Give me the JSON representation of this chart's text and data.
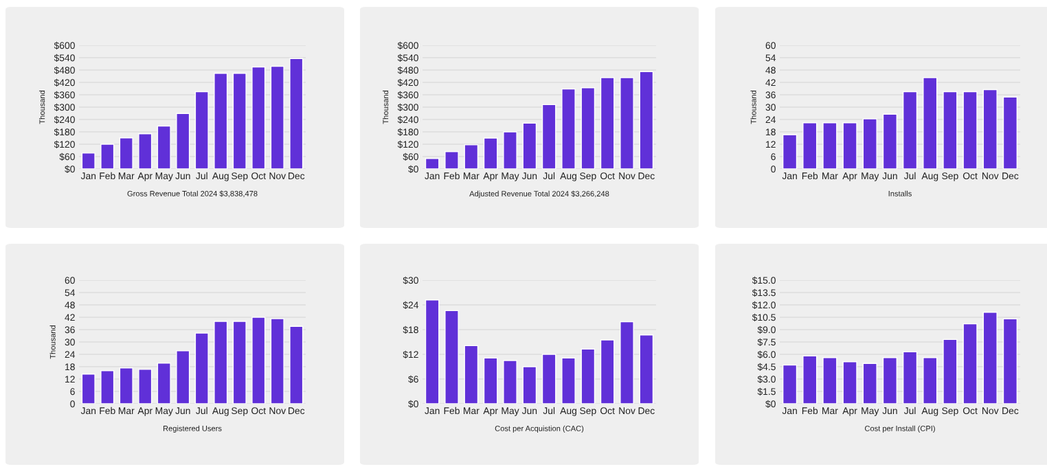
{
  "chart_data": [
    {
      "type": "bar",
      "xlabel": "Gross Revenue Total 2024 $3,838,478",
      "ylabel": "Thousand",
      "categories": [
        "Jan",
        "Feb",
        "Mar",
        "Apr",
        "May",
        "Jun",
        "Jul",
        "Aug",
        "Sep",
        "Oct",
        "Nov",
        "Dec"
      ],
      "series": [
        {
          "color": "#6030d8",
          "values": [
            77,
            120,
            151,
            171,
            208,
            269,
            375,
            464,
            464,
            495,
            498,
            536
          ]
        }
      ],
      "ylim": [
        0,
        600
      ],
      "yticks": [
        {
          "value": 0,
          "label": "$0"
        },
        {
          "value": 60,
          "label": "$60"
        },
        {
          "value": 120,
          "label": "$120"
        },
        {
          "value": 180,
          "label": "$180"
        },
        {
          "value": 240,
          "label": "$240"
        },
        {
          "value": 300,
          "label": "$300"
        },
        {
          "value": 360,
          "label": "$360"
        },
        {
          "value": 420,
          "label": "$420"
        },
        {
          "value": 480,
          "label": "$480"
        },
        {
          "value": 540,
          "label": "$540"
        },
        {
          "value": 600,
          "label": "$600"
        }
      ],
      "grid": "y"
    },
    {
      "type": "bar",
      "xlabel": "Adjusted Revenue Total 2024 $3,266,248",
      "ylabel": "Thousand",
      "categories": [
        "Jan",
        "Feb",
        "Mar",
        "Apr",
        "May",
        "Jun",
        "Jul",
        "Aug",
        "Sep",
        "Oct",
        "Nov",
        "Dec"
      ],
      "series": [
        {
          "color": "#6030d8",
          "values": [
            51,
            84,
            117,
            150,
            180,
            222,
            312,
            388,
            394,
            443,
            443,
            472
          ]
        }
      ],
      "ylim": [
        0,
        600
      ],
      "yticks": [
        {
          "value": 0,
          "label": "$0"
        },
        {
          "value": 60,
          "label": "$60"
        },
        {
          "value": 120,
          "label": "$120"
        },
        {
          "value": 180,
          "label": "$180"
        },
        {
          "value": 240,
          "label": "$240"
        },
        {
          "value": 300,
          "label": "$300"
        },
        {
          "value": 360,
          "label": "$360"
        },
        {
          "value": 420,
          "label": "$420"
        },
        {
          "value": 480,
          "label": "$480"
        },
        {
          "value": 540,
          "label": "$540"
        },
        {
          "value": 600,
          "label": "$600"
        }
      ],
      "grid": "y"
    },
    {
      "type": "bar",
      "xlabel": "Installs",
      "ylabel": "Thousand",
      "categories": [
        "Jan",
        "Feb",
        "Mar",
        "Apr",
        "May",
        "Jun",
        "Jul",
        "Aug",
        "Sep",
        "Oct",
        "Nov",
        "Dec"
      ],
      "series": [
        {
          "color": "#6030d8",
          "values": [
            16.6,
            22.4,
            22.4,
            22.4,
            24.3,
            26.6,
            37.5,
            44.3,
            37.5,
            37.5,
            38.5,
            34.9
          ]
        }
      ],
      "ylim": [
        0,
        60
      ],
      "yticks": [
        0,
        6,
        12,
        18,
        24,
        30,
        36,
        42,
        48,
        54,
        60
      ],
      "grid": "y"
    },
    {
      "type": "bar",
      "xlabel": "Registered Users",
      "ylabel": "Thousand",
      "categories": [
        "Jan",
        "Feb",
        "Mar",
        "Apr",
        "May",
        "Jun",
        "Jul",
        "Aug",
        "Sep",
        "Oct",
        "Nov",
        "Dec"
      ],
      "series": [
        {
          "color": "#6030d8",
          "values": [
            14.4,
            16.1,
            17.4,
            16.7,
            19.7,
            25.7,
            34.3,
            40.0,
            40.0,
            42.0,
            41.3,
            37.6
          ]
        }
      ],
      "ylim": [
        0,
        60
      ],
      "yticks": [
        0,
        6,
        12,
        18,
        24,
        30,
        36,
        42,
        48,
        54,
        60
      ],
      "grid": "y"
    },
    {
      "type": "bar",
      "xlabel": "Cost per Acquistion (CAC)",
      "categories": [
        "Jan",
        "Feb",
        "Mar",
        "Apr",
        "May",
        "Jun",
        "Jul",
        "Aug",
        "Sep",
        "Oct",
        "Nov",
        "Dec"
      ],
      "series": [
        {
          "color": "#6030d8",
          "values": [
            25.2,
            22.6,
            14.1,
            11.1,
            10.5,
            9.0,
            12.0,
            11.1,
            13.3,
            15.5,
            19.9,
            16.7
          ]
        }
      ],
      "ylim": [
        0,
        30
      ],
      "yticks": [
        {
          "value": 0,
          "label": "$0"
        },
        {
          "value": 6,
          "label": "$6"
        },
        {
          "value": 12,
          "label": "$12"
        },
        {
          "value": 18,
          "label": "$18"
        },
        {
          "value": 24,
          "label": "$24"
        },
        {
          "value": 30,
          "label": "$30"
        }
      ],
      "grid": "y"
    },
    {
      "type": "bar",
      "xlabel": "Cost per Install (CPI)",
      "categories": [
        "Jan",
        "Feb",
        "Mar",
        "Apr",
        "May",
        "Jun",
        "Jul",
        "Aug",
        "Sep",
        "Oct",
        "Nov",
        "Dec"
      ],
      "series": [
        {
          "color": "#6030d8",
          "values": [
            4.7,
            5.8,
            5.6,
            5.1,
            4.9,
            5.6,
            6.3,
            5.6,
            7.8,
            9.7,
            11.1,
            10.3
          ]
        }
      ],
      "ylim": [
        0,
        15
      ],
      "yticks": [
        {
          "value": 0,
          "label": "$0"
        },
        {
          "value": 1.5,
          "label": "$1.5"
        },
        {
          "value": 3,
          "label": "$3.0"
        },
        {
          "value": 4.5,
          "label": "$4.5"
        },
        {
          "value": 6,
          "label": "$6.0"
        },
        {
          "value": 7.5,
          "label": "$7.5"
        },
        {
          "value": 9,
          "label": "$9.0"
        },
        {
          "value": 10.5,
          "label": "$10.5"
        },
        {
          "value": 12,
          "label": "$12.0"
        },
        {
          "value": 13.5,
          "label": "$13.5"
        },
        {
          "value": 15,
          "label": "$15.0"
        }
      ],
      "grid": "y"
    }
  ]
}
